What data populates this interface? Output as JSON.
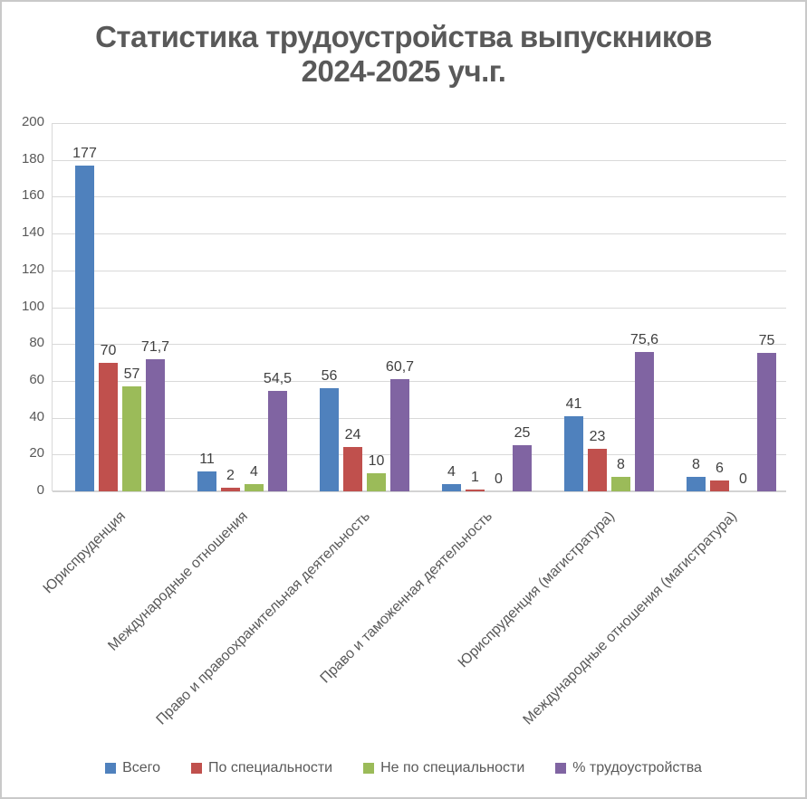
{
  "title": {
    "line1": "Статистика трудоустройства выпускников",
    "line2": "2024-2025 уч.г.",
    "full": "Статистика трудоустройства выпускников 2024-2025 уч.г."
  },
  "chart_data": {
    "type": "bar",
    "title": "Статистика трудоустройства выпускников 2024-2025 уч.г.",
    "categories": [
      "Юриспруденция",
      "Международные отношения",
      "Право и правоохранительная деятельность",
      "Право и таможенная деятельность",
      "Юриспруденция (магистратура)",
      "Международные отношения (магистратура)"
    ],
    "series": [
      {
        "name": "Всего",
        "color": "#4F81BD",
        "values": [
          177,
          11,
          56,
          4,
          41,
          8
        ],
        "labels": [
          "177",
          "11",
          "56",
          "4",
          "41",
          "8"
        ]
      },
      {
        "name": "По специальности",
        "color": "#C0504D",
        "values": [
          70,
          2,
          24,
          1,
          23,
          6
        ],
        "labels": [
          "70",
          "2",
          "24",
          "1",
          "23",
          "6"
        ]
      },
      {
        "name": "Не по специальности",
        "color": "#9BBB59",
        "values": [
          57,
          4,
          10,
          0,
          8,
          0
        ],
        "labels": [
          "57",
          "4",
          "10",
          "0",
          "8",
          "0"
        ]
      },
      {
        "name": "% трудоустройства",
        "color": "#8064A2",
        "values": [
          71.7,
          54.5,
          60.7,
          25,
          75.6,
          75
        ],
        "labels": [
          "71,7",
          "54,5",
          "60,7",
          "25",
          "75,6",
          "75"
        ]
      }
    ],
    "y_axis": {
      "min": 0,
      "max": 200,
      "step": 20,
      "tick_labels": [
        "0",
        "20",
        "40",
        "60",
        "80",
        "100",
        "120",
        "140",
        "160",
        "180",
        "200"
      ]
    },
    "grid": true,
    "legend_position": "bottom",
    "xlabel": "",
    "ylabel": "",
    "ylim": [
      0,
      200
    ],
    "colors": {
      "gridline": "#D9D9D9",
      "axis_line": "#D3D3D3",
      "axis_text": "#595959",
      "data_label": "#404040",
      "title_text": "#595959",
      "background": "#FFFFFF",
      "border": "#C9C9C9"
    }
  }
}
